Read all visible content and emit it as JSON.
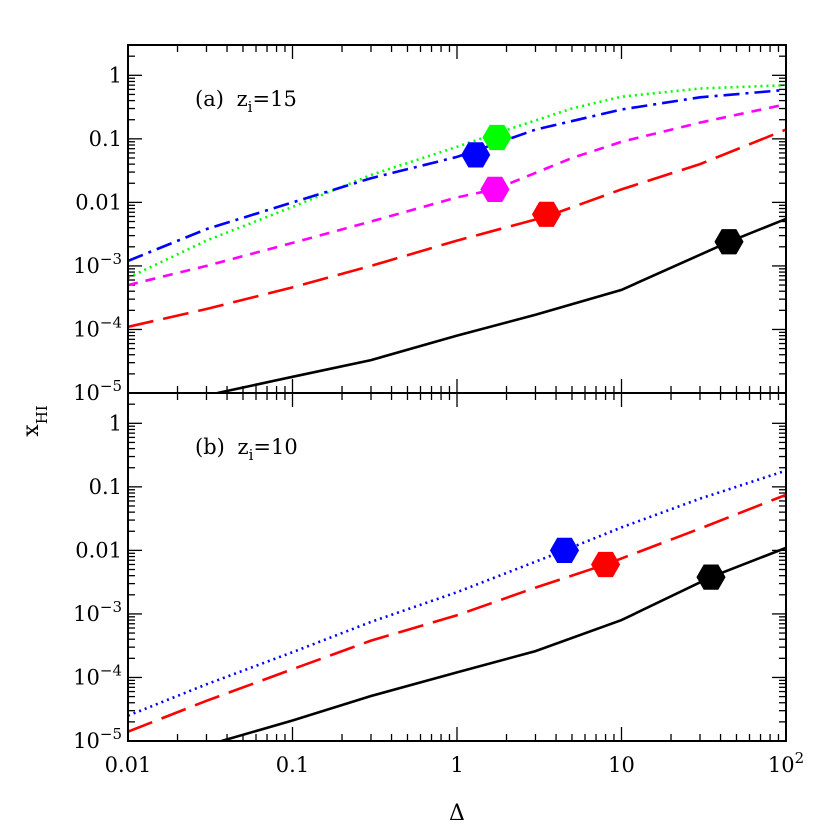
{
  "chart_data": {
    "type": "line",
    "xlabel": "Δ",
    "ylabel": "x",
    "ylabel_sub": "HI",
    "xscale": "log",
    "yscale": "log",
    "xlim": [
      0.01,
      100
    ],
    "x_ticks": [
      {
        "v": 0.01,
        "label": "0.01"
      },
      {
        "v": 0.1,
        "label": "0.1"
      },
      {
        "v": 1,
        "label": "1"
      },
      {
        "v": 10,
        "label": "10"
      },
      {
        "v": 100,
        "label": "10",
        "sup": "2"
      }
    ],
    "panels": [
      {
        "label_prefix": "(a)",
        "label_var": "z",
        "label_sub": "i",
        "label_value": "=15",
        "ylim": [
          1e-05,
          3
        ],
        "y_ticks": [
          {
            "v": 1,
            "label": "1"
          },
          {
            "v": 0.1,
            "label": "0.1"
          },
          {
            "v": 0.01,
            "label": "0.01"
          },
          {
            "v": 0.001,
            "label": "10",
            "sup": "−3"
          },
          {
            "v": 0.0001,
            "label": "10",
            "sup": "−4"
          },
          {
            "v": 1e-05,
            "label": "10",
            "sup": "−5"
          }
        ],
        "series": [
          {
            "color": "#000000",
            "dash": "solid",
            "x": [
              0.035,
              0.1,
              0.3,
              1,
              3,
              10,
              45,
              100
            ],
            "y": [
              1e-05,
              1.8e-05,
              3.3e-05,
              8e-05,
              0.00017,
              0.00042,
              0.0024,
              0.0055
            ],
            "marker": [
              45,
              0.0024
            ]
          },
          {
            "color": "#ff0000",
            "dash": "long-dash",
            "x": [
              0.01,
              0.03,
              0.1,
              0.3,
              1,
              3.5,
              10,
              30,
              100
            ],
            "y": [
              0.00011,
              0.00021,
              0.00046,
              0.001,
              0.0025,
              0.006,
              0.016,
              0.04,
              0.14
            ],
            "marker": [
              3.5,
              0.0065
            ]
          },
          {
            "color": "#ff00ff",
            "dash": "short-dash",
            "x": [
              0.01,
              0.03,
              0.1,
              0.3,
              1,
              1.7,
              5,
              10,
              30,
              100
            ],
            "y": [
              0.0005,
              0.001,
              0.0023,
              0.005,
              0.012,
              0.016,
              0.05,
              0.09,
              0.18,
              0.35
            ],
            "marker": [
              1.7,
              0.016
            ]
          },
          {
            "color": "#00ff00",
            "dash": "dotted",
            "x": [
              0.01,
              0.03,
              0.1,
              0.3,
              1,
              1.7,
              5,
              10,
              30,
              100
            ],
            "y": [
              0.00065,
              0.0025,
              0.0085,
              0.027,
              0.075,
              0.12,
              0.3,
              0.46,
              0.62,
              0.7
            ],
            "marker": [
              1.75,
              0.105
            ]
          },
          {
            "color": "#0000ff",
            "dash": "dash-dot",
            "x": [
              0.01,
              0.03,
              0.1,
              0.3,
              1,
              1.3,
              3,
              10,
              30,
              100
            ],
            "y": [
              0.0012,
              0.0038,
              0.01,
              0.024,
              0.052,
              0.065,
              0.14,
              0.29,
              0.45,
              0.59
            ],
            "marker": [
              1.3,
              0.056
            ]
          }
        ]
      },
      {
        "label_prefix": "(b)",
        "label_var": "z",
        "label_sub": "i",
        "label_value": "=10",
        "ylim": [
          1e-05,
          3
        ],
        "y_ticks": [
          {
            "v": 1,
            "label": "1"
          },
          {
            "v": 0.1,
            "label": "0.1"
          },
          {
            "v": 0.01,
            "label": "0.01"
          },
          {
            "v": 0.001,
            "label": "10",
            "sup": "−3"
          },
          {
            "v": 0.0001,
            "label": "10",
            "sup": "−4"
          },
          {
            "v": 1e-05,
            "label": "10",
            "sup": "−5"
          }
        ],
        "series": [
          {
            "color": "#000000",
            "dash": "solid",
            "x": [
              0.037,
              0.1,
              0.3,
              1,
              3,
              10,
              35,
              100
            ],
            "y": [
              1e-05,
              2.1e-05,
              5.1e-05,
              0.00012,
              0.00026,
              0.0008,
              0.0038,
              0.011
            ],
            "marker": [
              35,
              0.0038
            ]
          },
          {
            "color": "#ff0000",
            "dash": "long-dash",
            "x": [
              0.01,
              0.03,
              0.1,
              0.3,
              1,
              3,
              8,
              30,
              100
            ],
            "y": [
              1.4e-05,
              4.3e-05,
              0.000135,
              0.00038,
              0.00095,
              0.0026,
              0.006,
              0.022,
              0.075
            ],
            "marker": [
              8,
              0.006
            ]
          },
          {
            "color": "#0000ff",
            "dash": "dotted",
            "x": [
              0.01,
              0.03,
              0.1,
              0.3,
              1,
              4.5,
              10,
              30,
              100
            ],
            "y": [
              2.5e-05,
              7.8e-05,
              0.00025,
              0.00075,
              0.0022,
              0.01,
              0.023,
              0.065,
              0.18
            ],
            "marker": [
              4.5,
              0.01
            ]
          }
        ]
      }
    ]
  }
}
